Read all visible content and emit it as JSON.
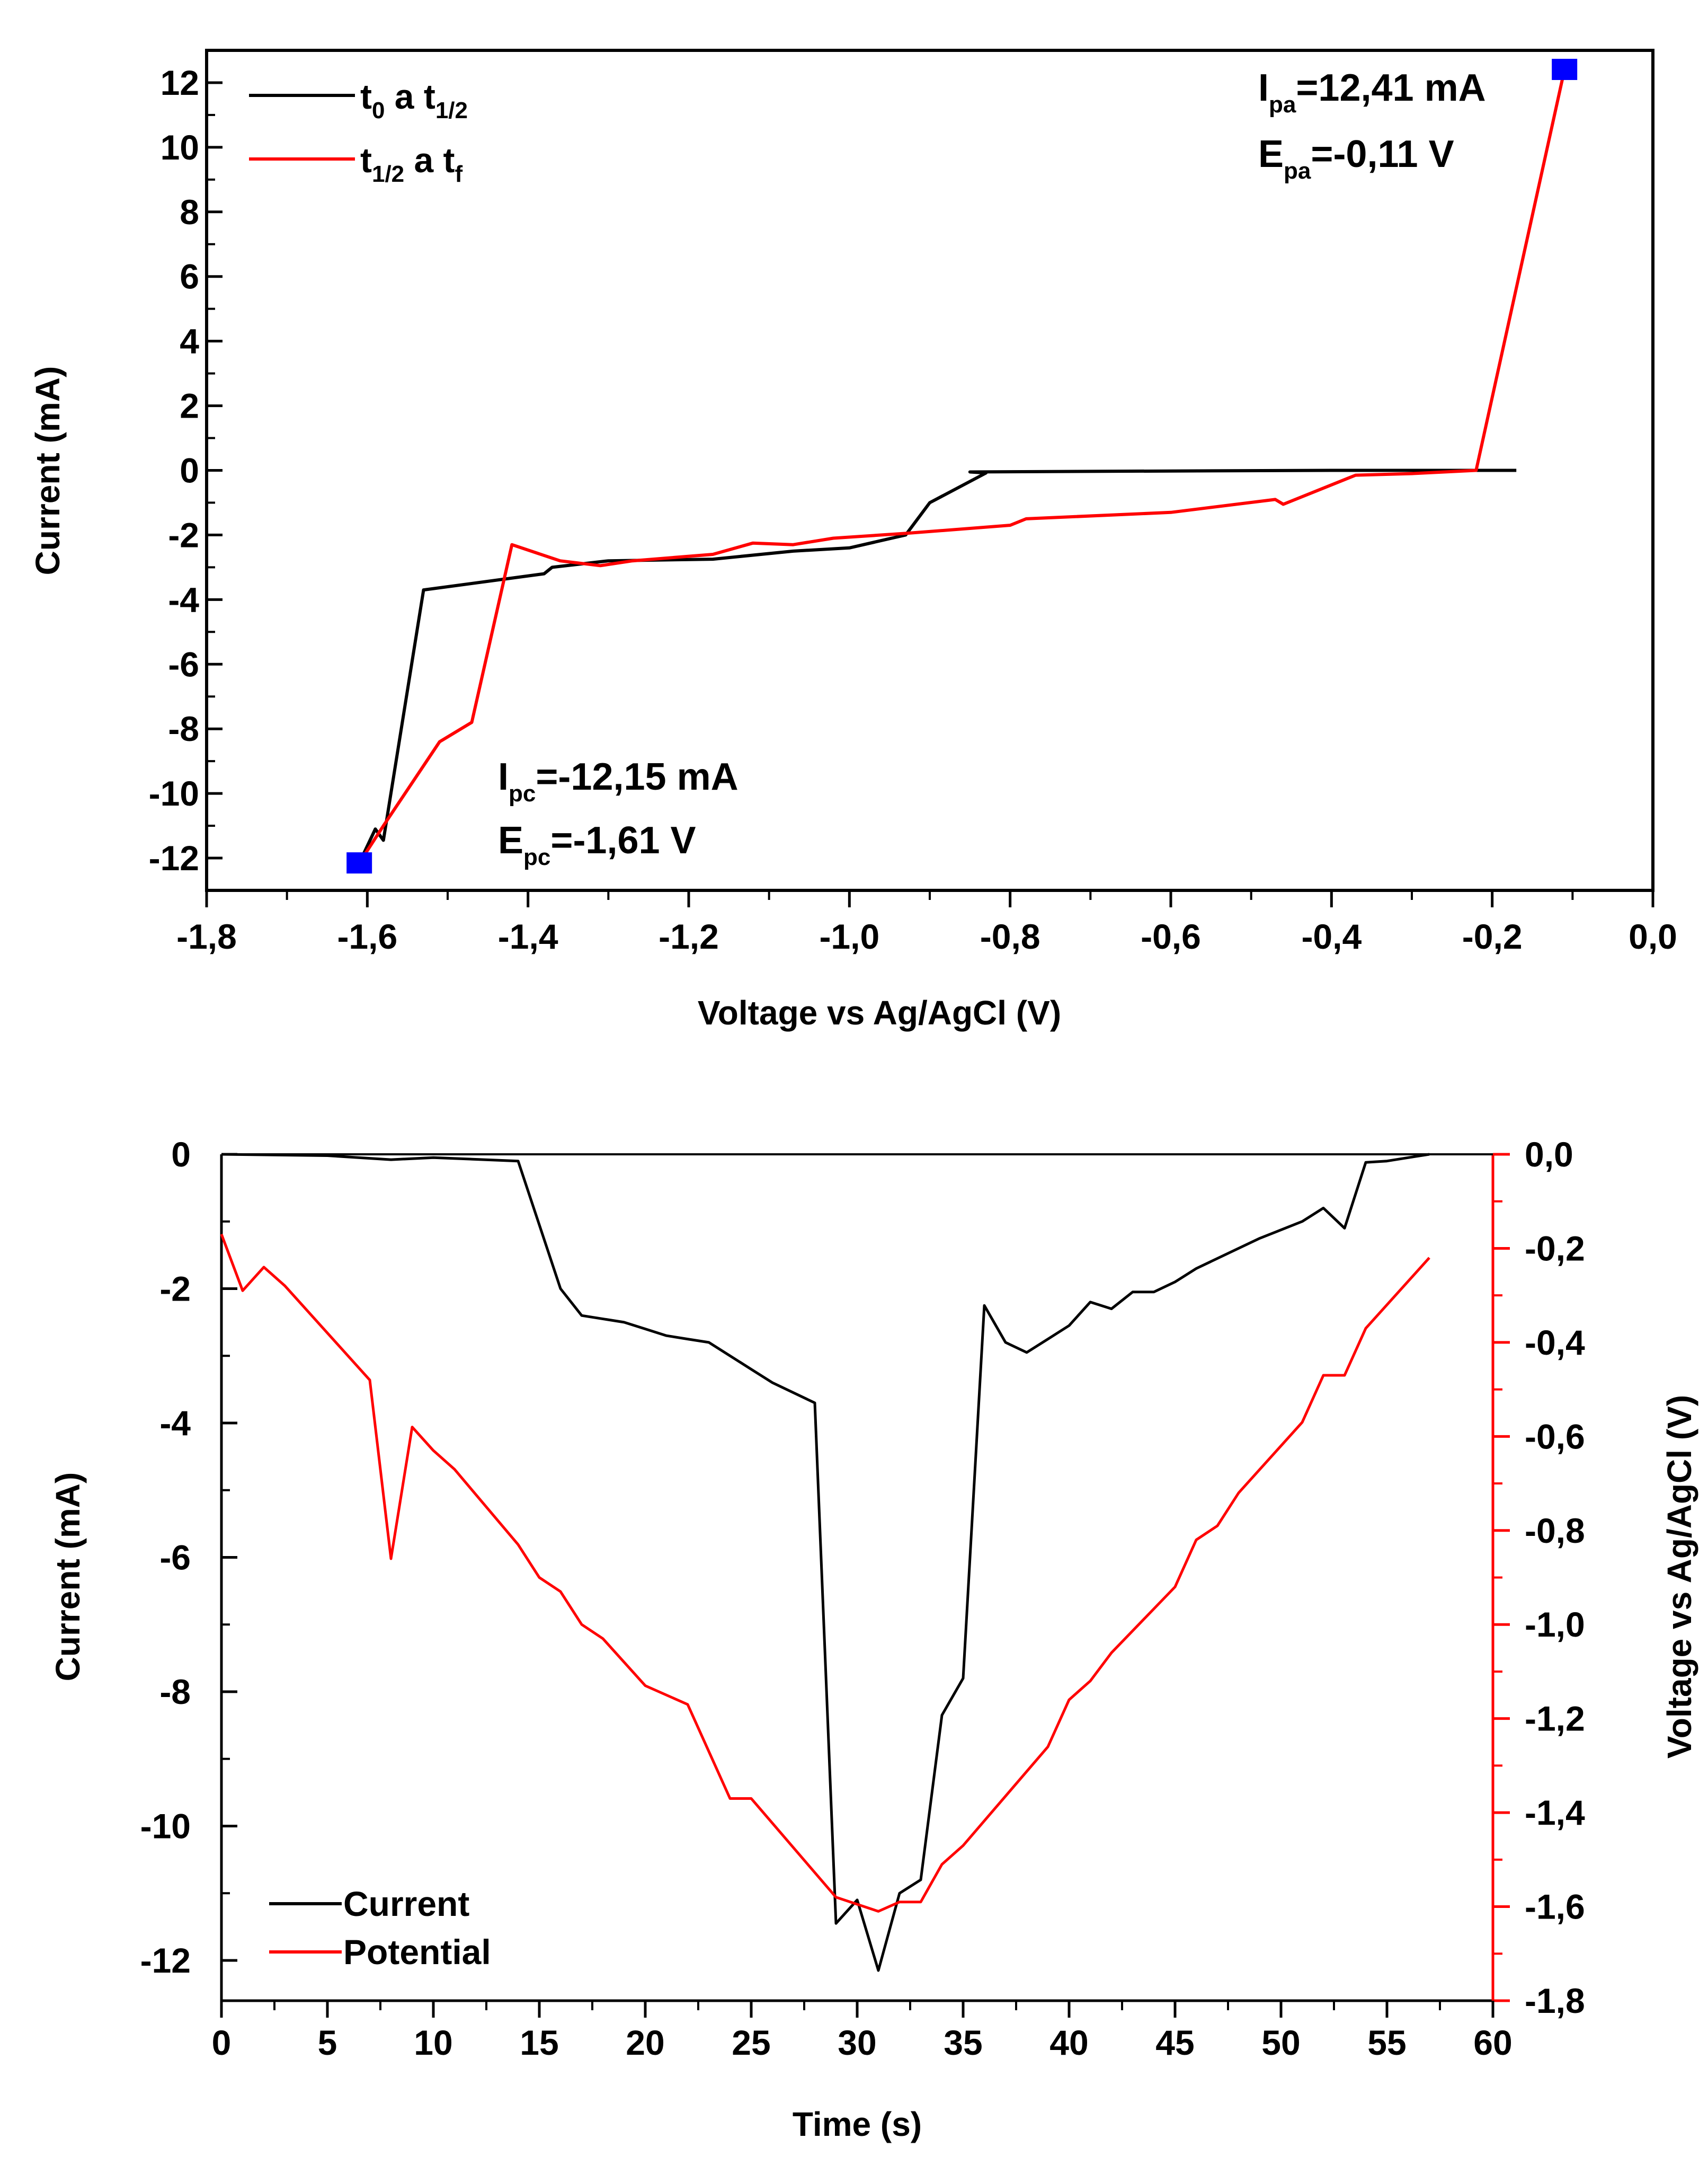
{
  "chart_data": [
    {
      "type": "line",
      "title": "",
      "xlabel": "Voltage vs Ag/AgCl (V)",
      "ylabel": "Current (mA)",
      "xlim": [
        -1.8,
        0.0
      ],
      "ylim": [
        -13,
        13
      ],
      "x_ticks": [
        -1.8,
        -1.6,
        -1.4,
        -1.2,
        -1.0,
        -0.8,
        -0.6,
        -0.4,
        -0.2,
        0.0
      ],
      "x_tick_labels": [
        "-1,8",
        "-1,6",
        "-1,4",
        "-1,2",
        "-1,0",
        "-0,8",
        "-0,6",
        "-0,4",
        "-0,2",
        "0,0"
      ],
      "y_ticks": [
        -12,
        -10,
        -8,
        -6,
        -4,
        -2,
        0,
        2,
        4,
        6,
        8,
        10,
        12
      ],
      "y_tick_labels": [
        "-12",
        "-10",
        "-8",
        "-6",
        "-4",
        "-2",
        "0",
        "2",
        "4",
        "6",
        "8",
        "10",
        "12"
      ],
      "legend_position": "top-left",
      "series": [
        {
          "name": "t0 a t1/2",
          "legend": {
            "base": "t",
            "sub": "0",
            "mid": " a t",
            "sub2": "1/2"
          },
          "color": "#000000",
          "points": [
            [
              -0.17,
              0.0
            ],
            [
              -0.4,
              0.0
            ],
            [
              -0.6,
              -0.02
            ],
            [
              -0.85,
              -0.05
            ],
            [
              -0.83,
              -0.08
            ],
            [
              -0.9,
              -1.0
            ],
            [
              -0.93,
              -2.0
            ],
            [
              -1.0,
              -2.4
            ],
            [
              -1.07,
              -2.5
            ],
            [
              -1.17,
              -2.75
            ],
            [
              -1.3,
              -2.8
            ],
            [
              -1.37,
              -3.0
            ],
            [
              -1.38,
              -3.2
            ],
            [
              -1.53,
              -3.7
            ],
            [
              -1.58,
              -11.45
            ],
            [
              -1.59,
              -11.1
            ],
            [
              -1.61,
              -12.15
            ]
          ]
        },
        {
          "name": "t1/2 a tf",
          "legend": {
            "base": "t",
            "sub": "1/2",
            "mid": " a t",
            "sub2": "f"
          },
          "color": "#ff0000",
          "points": [
            [
              -1.61,
              -12.15
            ],
            [
              -1.58,
              -11.0
            ],
            [
              -1.51,
              -8.4
            ],
            [
              -1.47,
              -7.8
            ],
            [
              -1.42,
              -2.3
            ],
            [
              -1.36,
              -2.8
            ],
            [
              -1.31,
              -2.95
            ],
            [
              -1.27,
              -2.8
            ],
            [
              -1.17,
              -2.6
            ],
            [
              -1.12,
              -2.25
            ],
            [
              -1.07,
              -2.3
            ],
            [
              -1.02,
              -2.1
            ],
            [
              -0.93,
              -1.95
            ],
            [
              -0.8,
              -1.7
            ],
            [
              -0.78,
              -1.5
            ],
            [
              -0.6,
              -1.3
            ],
            [
              -0.47,
              -0.9
            ],
            [
              -0.46,
              -1.05
            ],
            [
              -0.37,
              -0.15
            ],
            [
              -0.3,
              -0.1
            ],
            [
              -0.22,
              0.0
            ],
            [
              -0.11,
              12.41
            ]
          ]
        }
      ],
      "markers": [
        {
          "name": "Epc peak",
          "x": -1.61,
          "y": -12.15,
          "color": "#0000ff"
        },
        {
          "name": "Epa peak",
          "x": -0.11,
          "y": 12.41,
          "color": "#0000ff"
        }
      ],
      "annotations": {
        "ipa": {
          "base": "I",
          "sub": "pa",
          "rest": "=12,41 mA"
        },
        "epa": {
          "base": "E",
          "sub": "pa",
          "rest": "=-0,11 V"
        },
        "ipc": {
          "base": "I",
          "sub": "pc",
          "rest": "=-12,15 mA"
        },
        "epc": {
          "base": "E",
          "sub": "pc",
          "rest": "=-1,61 V"
        }
      }
    },
    {
      "type": "line",
      "title": "",
      "xlabel": "Time (s)",
      "ylabel": "Current (mA)",
      "y2label": "Voltage vs Ag/AgCl (V)",
      "xlim": [
        0,
        60
      ],
      "ylim": [
        -12.6,
        0
      ],
      "y2lim": [
        -1.8,
        0.0
      ],
      "x_ticks": [
        0,
        5,
        10,
        15,
        20,
        25,
        30,
        35,
        40,
        45,
        50,
        55,
        60
      ],
      "x_tick_labels": [
        "0",
        "5",
        "10",
        "15",
        "20",
        "25",
        "30",
        "35",
        "40",
        "45",
        "50",
        "55",
        "60"
      ],
      "y_ticks": [
        0,
        -2,
        -4,
        -6,
        -8,
        -10,
        -12
      ],
      "y_tick_labels": [
        "0",
        "-2",
        "-4",
        "-6",
        "-8",
        "-10",
        "-12"
      ],
      "y2_ticks": [
        0.0,
        -0.2,
        -0.4,
        -0.6,
        -0.8,
        -1.0,
        -1.2,
        -1.4,
        -1.6,
        -1.8
      ],
      "y2_tick_labels": [
        "0,0",
        "-0,2",
        "-0,4",
        "-0,6",
        "-0,8",
        "-1,0",
        "-1,2",
        "-1,4",
        "-1,6",
        "-1,8"
      ],
      "legend_position": "bottom-left",
      "series": [
        {
          "name": "Current",
          "axis": "left",
          "color": "#000000",
          "x": [
            0,
            5,
            8,
            10,
            14,
            16,
            17,
            19,
            20,
            21,
            22,
            23,
            24,
            25,
            26,
            28,
            29,
            30,
            31,
            32,
            33,
            34,
            35,
            36,
            37,
            38,
            39,
            40,
            41,
            42,
            43,
            44,
            45,
            46,
            48,
            49,
            51,
            52,
            53,
            54,
            55,
            56,
            57
          ],
          "values": [
            0,
            -0.02,
            -0.08,
            -0.05,
            -0.1,
            -2.0,
            -2.4,
            -2.5,
            -2.6,
            -2.7,
            -2.75,
            -2.8,
            -3.0,
            -3.2,
            -3.4,
            -3.7,
            -11.45,
            -11.1,
            -12.15,
            -11.0,
            -10.8,
            -8.35,
            -7.8,
            -2.25,
            -2.8,
            -2.95,
            -2.75,
            -2.55,
            -2.2,
            -2.3,
            -2.05,
            -2.05,
            -1.9,
            -1.7,
            -1.4,
            -1.25,
            -1.0,
            -0.8,
            -1.1,
            -0.12,
            -0.1,
            -0.05,
            0.0
          ]
        },
        {
          "name": "Potential",
          "axis": "right",
          "color": "#ff0000",
          "x": [
            0,
            1,
            2,
            3,
            7,
            8,
            9,
            10,
            11,
            14,
            15,
            16,
            17,
            18,
            20,
            22,
            24,
            25,
            29,
            31,
            32,
            33,
            34,
            35,
            39,
            40,
            41,
            42,
            45,
            46,
            47,
            48,
            51,
            52,
            53,
            54,
            57
          ],
          "values": [
            -0.17,
            -0.29,
            -0.24,
            -0.28,
            -0.48,
            -0.86,
            -0.58,
            -0.63,
            -0.67,
            -0.83,
            -0.9,
            -0.93,
            -1.0,
            -1.03,
            -1.13,
            -1.17,
            -1.37,
            -1.37,
            -1.58,
            -1.61,
            -1.59,
            -1.59,
            -1.51,
            -1.47,
            -1.26,
            -1.16,
            -1.12,
            -1.06,
            -0.92,
            -0.82,
            -0.79,
            -0.72,
            -0.57,
            -0.47,
            -0.47,
            -0.37,
            -0.22
          ]
        }
      ]
    }
  ]
}
